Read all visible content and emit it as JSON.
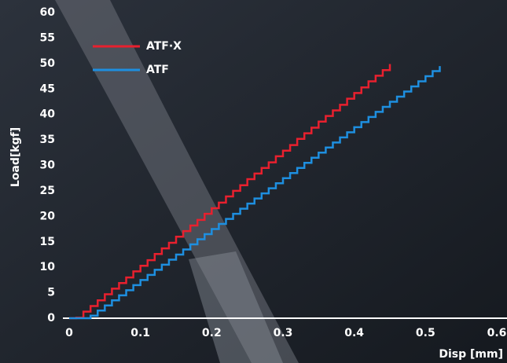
{
  "chart_data": {
    "type": "line",
    "step": true,
    "y_label": "Load[kgf]",
    "x_label": "Disp [mm]",
    "xlim": [
      0,
      0.6
    ],
    "xticks": [
      0,
      0.1,
      0.2,
      0.3,
      0.4,
      0.5,
      0.6
    ],
    "ylim": [
      0,
      60
    ],
    "yticks": [
      0,
      5,
      10,
      15,
      20,
      25,
      30,
      35,
      40,
      45,
      50,
      55,
      60
    ],
    "legend": "top-left",
    "series": [
      {
        "name": "ATF·X",
        "color": "#e8202e",
        "x": [
          0,
          0.01,
          0.02,
          0.03,
          0.04,
          0.05,
          0.06,
          0.07,
          0.08,
          0.09,
          0.1,
          0.11,
          0.12,
          0.13,
          0.14,
          0.15,
          0.16,
          0.17,
          0.18,
          0.19,
          0.2,
          0.21,
          0.22,
          0.23,
          0.24,
          0.25,
          0.26,
          0.27,
          0.28,
          0.29,
          0.3,
          0.31,
          0.32,
          0.33,
          0.34,
          0.35,
          0.36,
          0.37,
          0.38,
          0.39,
          0.4,
          0.41,
          0.42,
          0.43,
          0.44,
          0.45
        ],
        "values": [
          0,
          0.1,
          1.3,
          2.4,
          3.5,
          4.7,
          5.8,
          6.9,
          8.0,
          9.2,
          10.3,
          11.4,
          12.6,
          13.7,
          14.8,
          16.0,
          17.1,
          18.2,
          19.3,
          20.5,
          21.6,
          22.7,
          23.9,
          25.0,
          26.1,
          27.3,
          28.4,
          29.5,
          30.6,
          31.8,
          32.9,
          34.0,
          35.2,
          36.3,
          37.4,
          38.6,
          39.7,
          40.8,
          41.9,
          43.1,
          44.2,
          45.3,
          46.5,
          47.6,
          48.7,
          49.9
        ]
      },
      {
        "name": "ATF",
        "color": "#1e8fe0",
        "x": [
          0,
          0.01,
          0.02,
          0.03,
          0.04,
          0.05,
          0.06,
          0.07,
          0.08,
          0.09,
          0.1,
          0.11,
          0.12,
          0.13,
          0.14,
          0.15,
          0.16,
          0.17,
          0.18,
          0.19,
          0.2,
          0.21,
          0.22,
          0.23,
          0.24,
          0.25,
          0.26,
          0.27,
          0.28,
          0.29,
          0.3,
          0.31,
          0.32,
          0.33,
          0.34,
          0.35,
          0.36,
          0.37,
          0.38,
          0.39,
          0.4,
          0.41,
          0.42,
          0.43,
          0.44,
          0.45,
          0.46,
          0.47,
          0.48,
          0.49,
          0.5,
          0.51,
          0.52
        ],
        "values": [
          0,
          0,
          0,
          0.5,
          1.5,
          2.5,
          3.5,
          4.5,
          5.5,
          6.5,
          7.5,
          8.5,
          9.5,
          10.5,
          11.5,
          12.5,
          13.5,
          14.5,
          15.5,
          16.5,
          17.5,
          18.5,
          19.5,
          20.5,
          21.5,
          22.5,
          23.5,
          24.5,
          25.5,
          26.5,
          27.5,
          28.5,
          29.5,
          30.5,
          31.5,
          32.5,
          33.5,
          34.5,
          35.5,
          36.5,
          37.5,
          38.5,
          39.5,
          40.5,
          41.5,
          42.5,
          43.5,
          44.5,
          45.5,
          46.5,
          47.5,
          48.5,
          49.5
        ]
      }
    ]
  }
}
